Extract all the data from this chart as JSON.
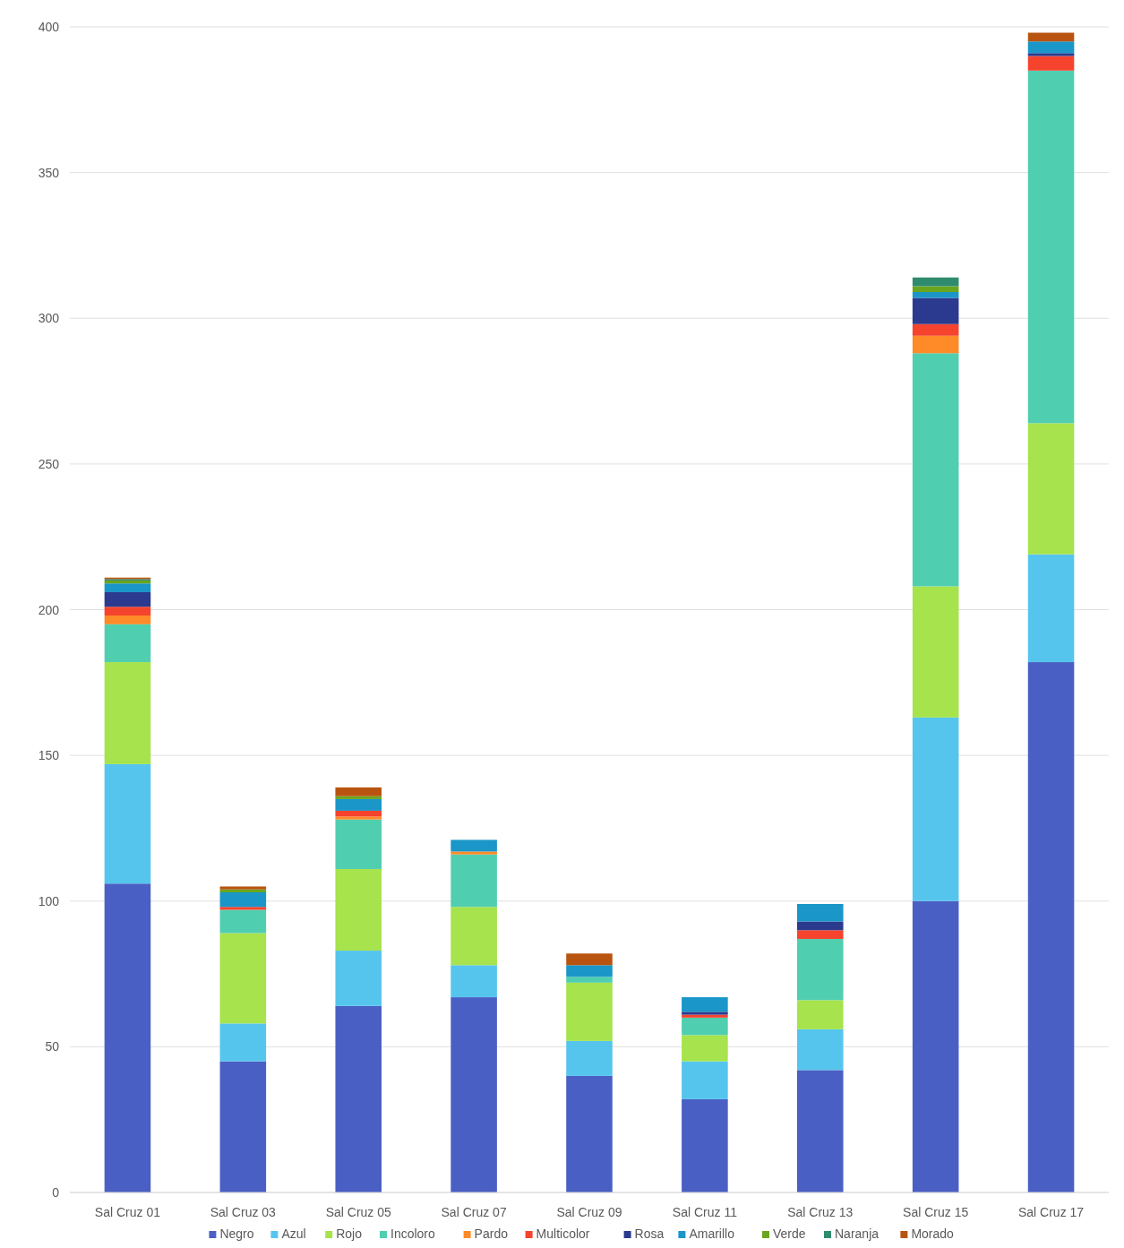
{
  "chart_data": {
    "type": "bar",
    "stacked": true,
    "categories": [
      "Sal Cruz 01",
      "Sal Cruz 03",
      "Sal Cruz 05",
      "Sal Cruz 07",
      "Sal Cruz 09",
      "Sal Cruz 11",
      "Sal Cruz 13",
      "Sal Cruz 15",
      "Sal Cruz 17"
    ],
    "series": [
      {
        "name": "Negro",
        "color": "#4a5fc4",
        "values": [
          106,
          45,
          64,
          67,
          40,
          32,
          42,
          100,
          182
        ]
      },
      {
        "name": "Azul",
        "color": "#56c5ee",
        "values": [
          41,
          13,
          19,
          11,
          12,
          13,
          14,
          63,
          37
        ]
      },
      {
        "name": "Rojo",
        "color": "#a6e34c",
        "values": [
          35,
          31,
          28,
          20,
          20,
          9,
          10,
          45,
          45
        ]
      },
      {
        "name": "Incoloro",
        "color": "#50ceb0",
        "values": [
          13,
          8,
          17,
          18,
          2,
          6,
          21,
          80,
          121
        ]
      },
      {
        "name": "Pardo",
        "color": "#ff8a28",
        "values": [
          3,
          null,
          1,
          1,
          null,
          null,
          null,
          6,
          null
        ]
      },
      {
        "name": "Multicolor",
        "color": "#f5432e",
        "values": [
          3,
          1,
          2,
          null,
          null,
          1,
          3,
          4,
          5
        ]
      },
      {
        "name": "Rosa",
        "color": "#2b3a8f",
        "values": [
          5,
          null,
          null,
          null,
          null,
          1,
          3,
          9,
          1
        ]
      },
      {
        "name": "Amarillo",
        "color": "#1a96c8",
        "values": [
          3,
          5,
          4,
          4,
          4,
          5,
          6,
          2,
          4
        ]
      },
      {
        "name": "Verde",
        "color": "#6aa51e",
        "values": [
          1,
          1,
          1,
          null,
          null,
          null,
          null,
          2,
          null
        ]
      },
      {
        "name": "Naranja",
        "color": "#2e8b6e",
        "values": [
          0.5,
          null,
          null,
          null,
          null,
          null,
          null,
          3,
          null
        ]
      },
      {
        "name": "Morado",
        "color": "#b85410",
        "values": [
          0.5,
          1,
          3,
          null,
          4,
          null,
          null,
          null,
          3
        ]
      }
    ],
    "ylim": [
      0,
      400
    ],
    "yticks": [
      0,
      50,
      100,
      150,
      200,
      250,
      300,
      350,
      400
    ],
    "grid": "y",
    "legend": "bottom"
  }
}
